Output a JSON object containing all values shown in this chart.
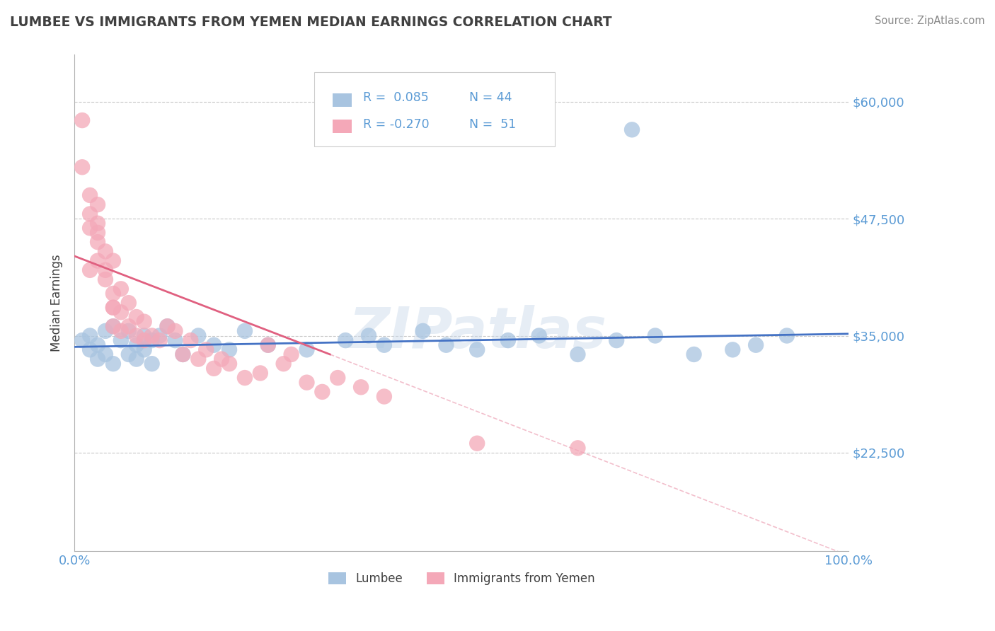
{
  "title": "LUMBEE VS IMMIGRANTS FROM YEMEN MEDIAN EARNINGS CORRELATION CHART",
  "source": "Source: ZipAtlas.com",
  "ylabel": "Median Earnings",
  "watermark": "ZIPatlas",
  "xlim": [
    0,
    100
  ],
  "ylim": [
    12000,
    65000
  ],
  "yticks": [
    22500,
    35000,
    47500,
    60000
  ],
  "ytick_labels": [
    "$22,500",
    "$35,000",
    "$47,500",
    "$60,000"
  ],
  "xticks": [
    0,
    100
  ],
  "xtick_labels": [
    "0.0%",
    "100.0%"
  ],
  "legend_r_lumbee": "R =  0.085",
  "legend_n_lumbee": "N = 44",
  "legend_r_yemen": "R = -0.270",
  "legend_n_yemen": "N =  51",
  "lumbee_color": "#a8c4e0",
  "yemen_color": "#f4a8b8",
  "trend_lumbee_color": "#4472c4",
  "trend_yemen_color": "#e06080",
  "title_color": "#404040",
  "axis_color": "#5b9bd5",
  "grid_color": "#c8c8c8",
  "lumbee_scatter_x": [
    1,
    2,
    2,
    3,
    3,
    4,
    4,
    5,
    5,
    6,
    7,
    7,
    8,
    8,
    9,
    9,
    10,
    10,
    11,
    12,
    13,
    14,
    16,
    18,
    20,
    22,
    25,
    30,
    35,
    38,
    40,
    45,
    48,
    52,
    56,
    60,
    65,
    70,
    75,
    80,
    85,
    88,
    92,
    72
  ],
  "lumbee_scatter_y": [
    34500,
    35000,
    33500,
    34000,
    32500,
    35500,
    33000,
    36000,
    32000,
    34500,
    35500,
    33000,
    34000,
    32500,
    35000,
    33500,
    34500,
    32000,
    35000,
    36000,
    34500,
    33000,
    35000,
    34000,
    33500,
    35500,
    34000,
    33500,
    34500,
    35000,
    34000,
    35500,
    34000,
    33500,
    34500,
    35000,
    33000,
    34500,
    35000,
    33000,
    33500,
    34000,
    35000,
    57000
  ],
  "yemen_scatter_x": [
    1,
    1,
    2,
    2,
    3,
    3,
    3,
    3,
    4,
    4,
    4,
    5,
    5,
    5,
    5,
    6,
    6,
    6,
    7,
    7,
    8,
    8,
    9,
    9,
    10,
    11,
    12,
    13,
    14,
    15,
    16,
    17,
    18,
    19,
    20,
    22,
    24,
    25,
    27,
    28,
    30,
    32,
    34,
    37,
    40,
    52,
    65,
    3,
    2,
    2,
    5
  ],
  "yemen_scatter_y": [
    58000,
    53000,
    50000,
    48000,
    47000,
    45000,
    43000,
    49000,
    42000,
    44000,
    41000,
    39500,
    38000,
    43000,
    36000,
    40000,
    37500,
    35500,
    38500,
    36000,
    35000,
    37000,
    34500,
    36500,
    35000,
    34500,
    36000,
    35500,
    33000,
    34500,
    32500,
    33500,
    31500,
    32500,
    32000,
    30500,
    31000,
    34000,
    32000,
    33000,
    30000,
    29000,
    30500,
    29500,
    28500,
    23500,
    23000,
    46000,
    42000,
    46500,
    38000
  ],
  "trend_lumbee_x0": 0,
  "trend_lumbee_x1": 100,
  "trend_lumbee_y0": 33800,
  "trend_lumbee_y1": 35200,
  "trend_yemen_solid_x0": 0,
  "trend_yemen_solid_x1": 33,
  "trend_yemen_solid_y0": 43500,
  "trend_yemen_solid_y1": 33000,
  "trend_yemen_dash_x0": 33,
  "trend_yemen_dash_x1": 100,
  "trend_yemen_dash_y0": 33000,
  "trend_yemen_dash_y1": 11500
}
